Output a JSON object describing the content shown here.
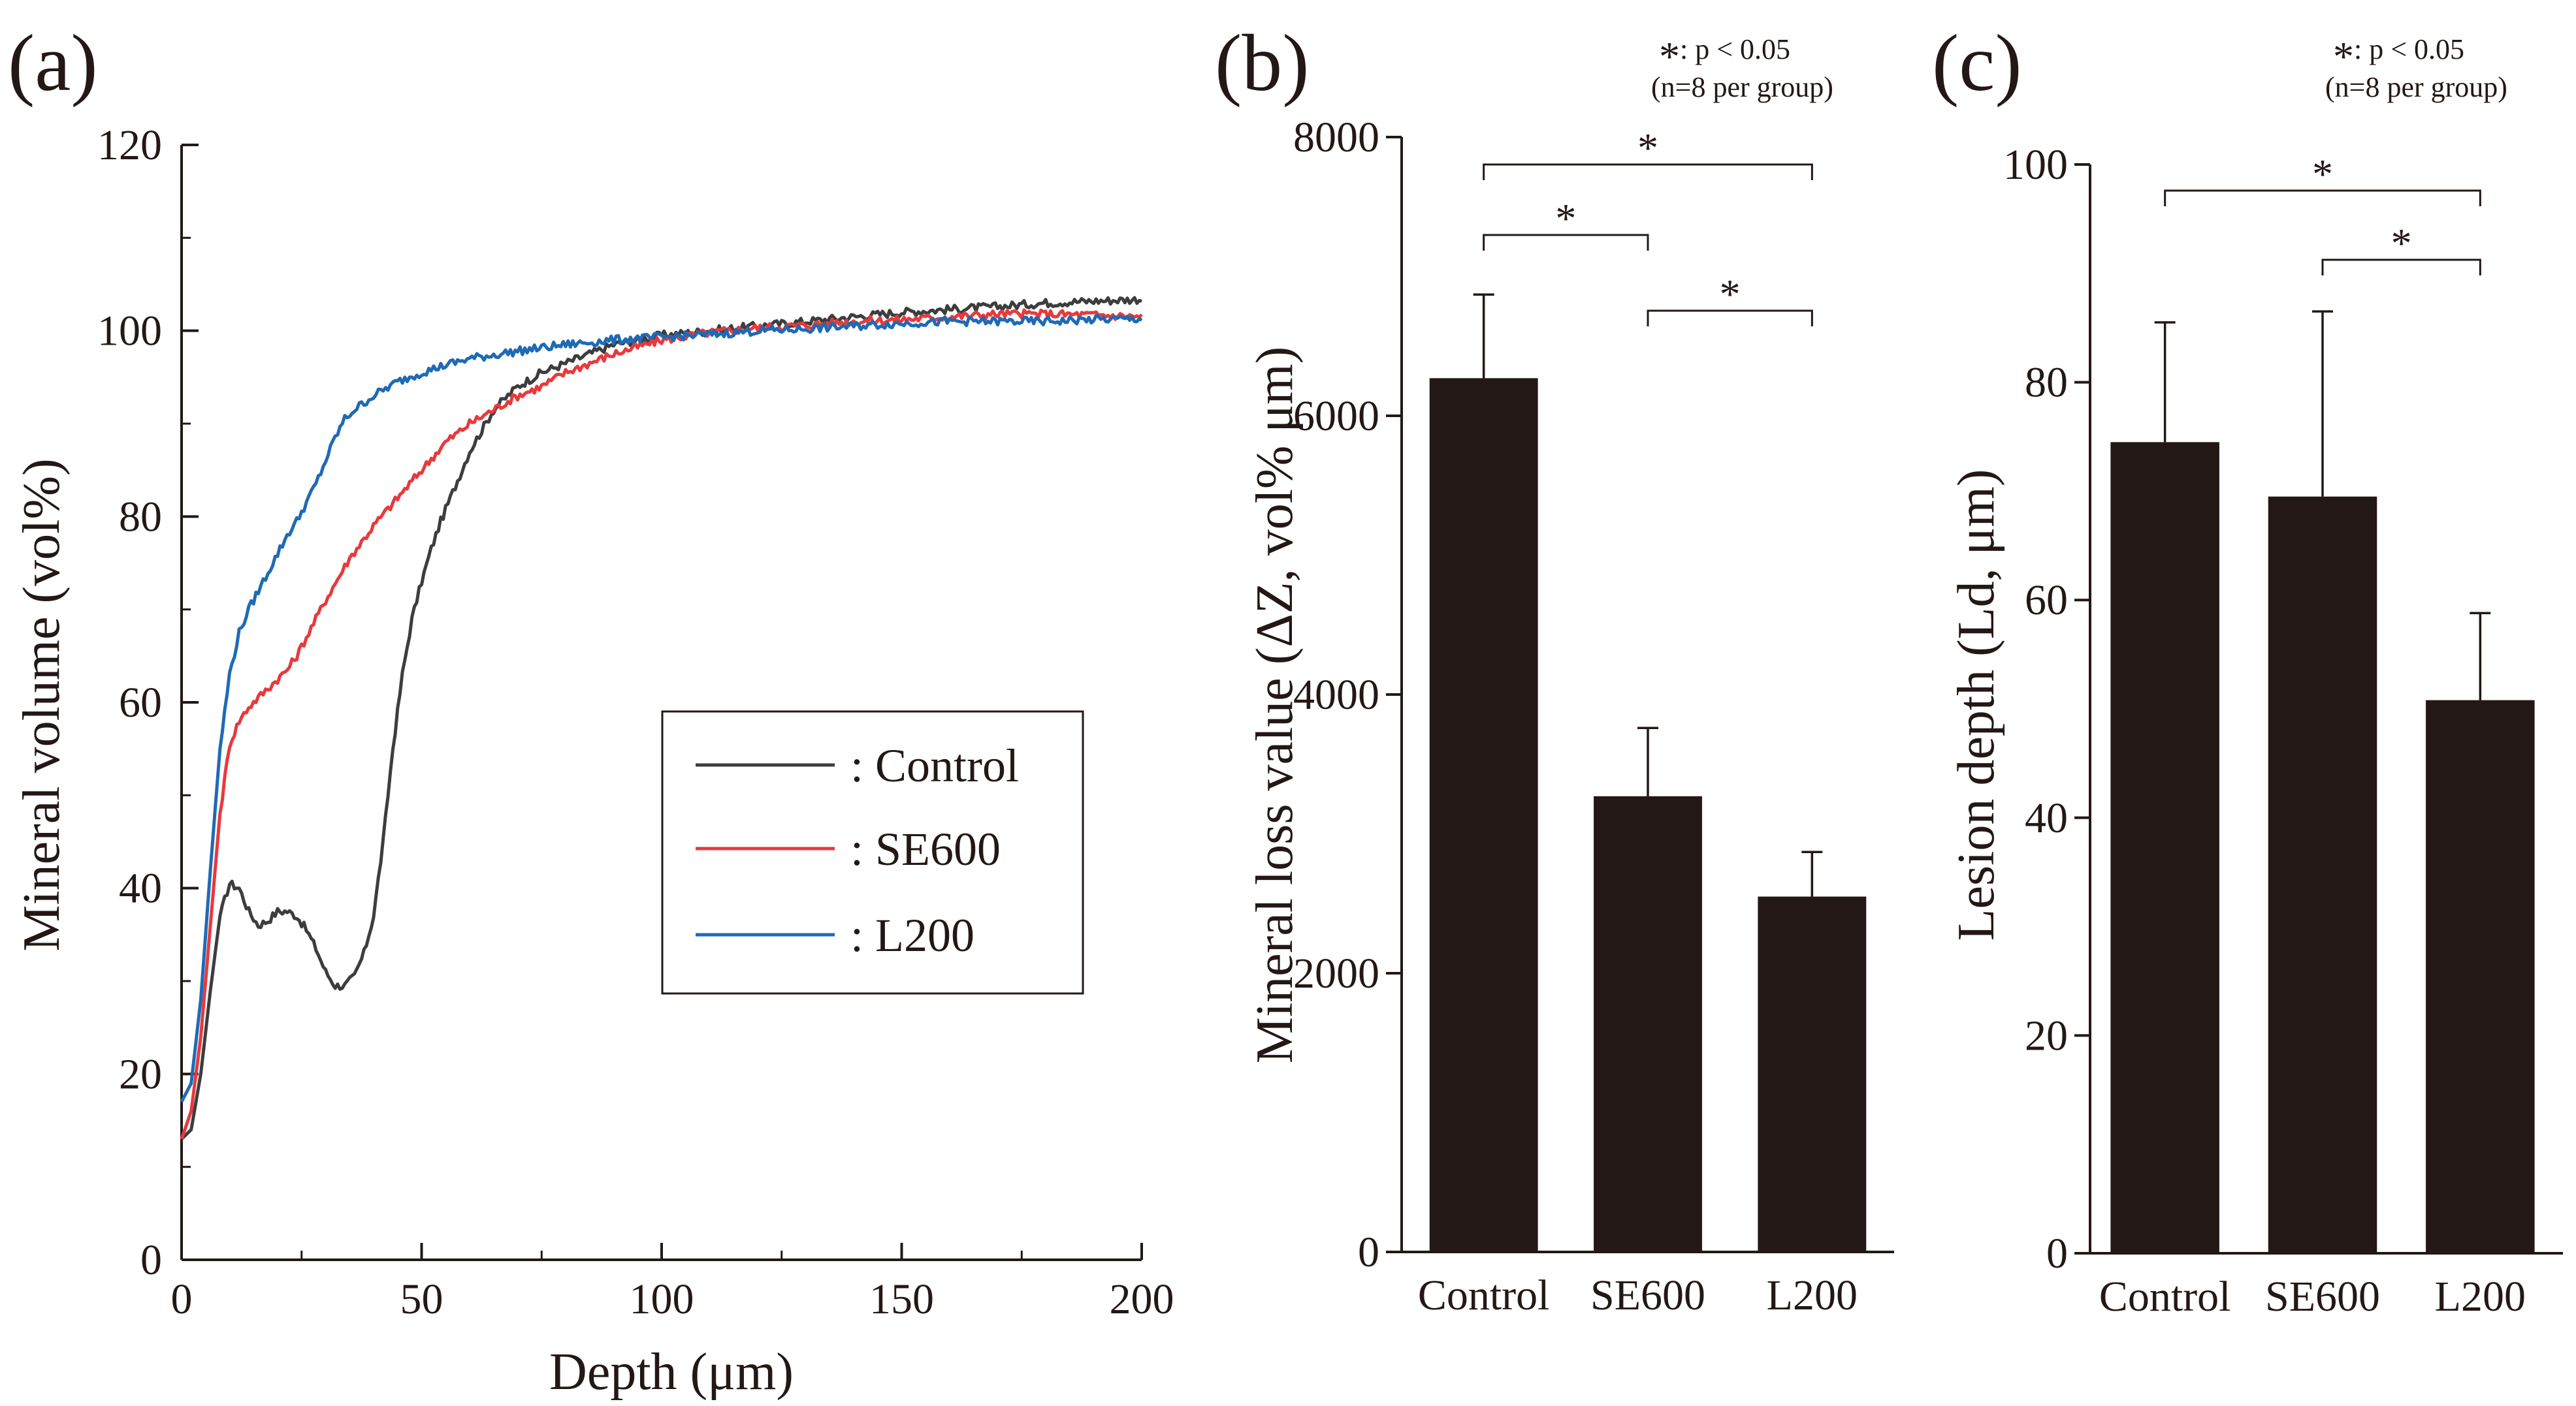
{
  "panels": {
    "a": "(a)",
    "b": "(b)",
    "c": "(c)"
  },
  "chart_data": [
    {
      "panel": "(a)",
      "type": "line",
      "xlabel": "Depth (μm)",
      "ylabel": "Mineral volume (vol%)",
      "xlim": [
        0,
        200
      ],
      "ylim": [
        0,
        120
      ],
      "xticks": [
        "0",
        "50",
        "100",
        "150",
        "200"
      ],
      "yticks": [
        "0",
        "20",
        "40",
        "60",
        "80",
        "100",
        "120"
      ],
      "legend": {
        "position": "center-right",
        "entries": [
          ": Control",
          ": SE600",
          ": L200"
        ]
      },
      "series": [
        {
          "name": "Control",
          "color": "#3d3d3d",
          "x": [
            0,
            2,
            4,
            6,
            8,
            10,
            12,
            14,
            16,
            18,
            20,
            22,
            24,
            26,
            28,
            30,
            32,
            34,
            36,
            38,
            40,
            42,
            44,
            46,
            48,
            50,
            52,
            54,
            56,
            58,
            60,
            65,
            70,
            75,
            80,
            90,
            100,
            110,
            120,
            130,
            140,
            150,
            160,
            170,
            180,
            190,
            200
          ],
          "y": [
            13,
            14,
            20,
            29,
            37,
            40.5,
            40,
            37.5,
            36,
            36.5,
            37.5,
            37.5,
            37,
            35.5,
            33.5,
            31,
            29.5,
            29.5,
            30.5,
            33,
            37,
            45,
            55,
            63,
            69,
            73,
            76.5,
            79.5,
            82,
            84.5,
            87,
            91.5,
            94,
            95.5,
            96.5,
            98.5,
            99.5,
            100,
            100.5,
            101,
            101.5,
            102,
            102.3,
            102.6,
            103,
            103.2,
            103.4
          ]
        },
        {
          "name": "SE600",
          "color": "#e8393d",
          "x": [
            0,
            2,
            4,
            6,
            8,
            10,
            12,
            14,
            16,
            18,
            20,
            22,
            24,
            26,
            28,
            30,
            35,
            40,
            45,
            50,
            55,
            60,
            65,
            70,
            75,
            80,
            90,
            100,
            110,
            120,
            130,
            140,
            150,
            160,
            170,
            180,
            190,
            200
          ],
          "y": [
            13,
            16,
            24,
            36,
            48,
            55.5,
            58,
            59.5,
            60.5,
            61.5,
            62.5,
            63.5,
            65,
            67,
            69,
            71,
            75.5,
            79,
            82,
            85,
            88,
            90,
            91.5,
            93,
            94,
            95.5,
            97.5,
            99,
            99.8,
            100.3,
            100.6,
            101,
            101.2,
            101.5,
            101.8,
            101.8,
            101.7,
            101.5
          ]
        },
        {
          "name": "L200",
          "color": "#1f6ab5",
          "x": [
            0,
            2,
            4,
            6,
            8,
            10,
            12,
            14,
            16,
            18,
            20,
            22,
            24,
            26,
            28,
            30,
            32,
            34,
            36,
            40,
            45,
            50,
            55,
            60,
            70,
            80,
            90,
            100,
            110,
            120,
            130,
            140,
            150,
            160,
            170,
            180,
            190,
            200
          ],
          "y": [
            17,
            19,
            28,
            42,
            55,
            63,
            67.5,
            70,
            72,
            74,
            76,
            78,
            79.5,
            81.5,
            83.5,
            86,
            88.5,
            90.5,
            91.5,
            93,
            94.5,
            95.5,
            96.3,
            97,
            97.8,
            98.5,
            99,
            99.3,
            99.6,
            100,
            100.2,
            100.5,
            100.8,
            101,
            101,
            101,
            101.2,
            101.3
          ]
        }
      ]
    },
    {
      "panel": "(b)",
      "type": "bar",
      "categories": [
        "Control",
        "SE600",
        "L200"
      ],
      "values": [
        6270,
        3270,
        2550
      ],
      "errors": [
        600,
        490,
        320
      ],
      "ylim": [
        0,
        8000
      ],
      "yticks": [
        "0",
        "2000",
        "4000",
        "6000",
        "8000"
      ],
      "xlabel": "",
      "ylabel": "Mineral loss value  (ΔZ, vol% μm)",
      "bar_color": "#231815",
      "note_star": "*",
      "note_p": ": p < 0.05",
      "note_n": "(n=8 per group)",
      "significance": [
        {
          "from": 0,
          "to": 2,
          "label": "*"
        },
        {
          "from": 0,
          "to": 1,
          "label": "*"
        },
        {
          "from": 1,
          "to": 2,
          "label": "*"
        }
      ]
    },
    {
      "panel": "(c)",
      "type": "bar",
      "categories": [
        "Control",
        "SE600",
        "L200"
      ],
      "values": [
        74.5,
        69.5,
        50.8
      ],
      "errors": [
        11,
        17,
        8
      ],
      "ylim": [
        0,
        100
      ],
      "yticks": [
        "0",
        "20",
        "40",
        "60",
        "80",
        "100"
      ],
      "xlabel": "",
      "ylabel": "Lesion depth (Ld, μm)",
      "bar_color": "#231815",
      "note_star": "*",
      "note_p": ": p < 0.05",
      "note_n": "(n=8 per group)",
      "significance": [
        {
          "from": 0,
          "to": 2,
          "label": "*"
        },
        {
          "from": 1,
          "to": 2,
          "label": "*"
        }
      ]
    }
  ]
}
